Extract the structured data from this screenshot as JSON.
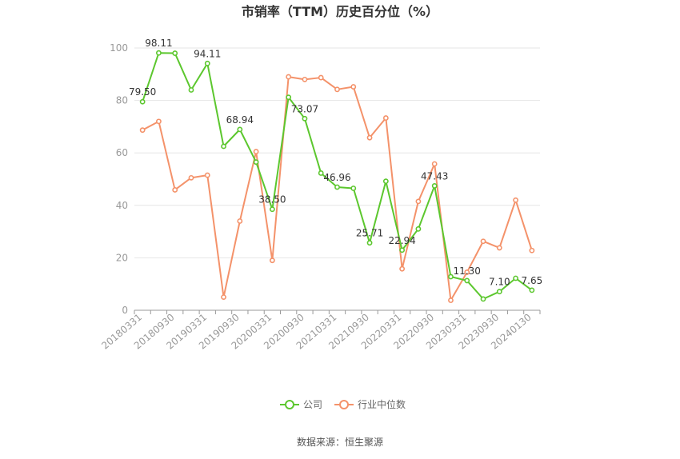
{
  "chart_data": {
    "type": "line",
    "title": "市销率（TTM）历史百分位（%）",
    "xlabel": "",
    "ylabel": "",
    "ylim": [
      0,
      100
    ],
    "yticks": [
      0,
      20,
      40,
      60,
      80,
      100
    ],
    "x": [
      "20180331",
      "20180630",
      "20180930",
      "20181231",
      "20190331",
      "20190630",
      "20190930",
      "20191231",
      "20200331",
      "20200630",
      "20200930",
      "20201231",
      "20210331",
      "20210630",
      "20210930",
      "20211231",
      "20220331",
      "20220630",
      "20220930",
      "20221231",
      "20230331",
      "20230630",
      "20230930",
      "20231231",
      "20240130"
    ],
    "xtick_labels": [
      "20180331",
      "20180930",
      "20190331",
      "20190930",
      "20200331",
      "20200930",
      "20210331",
      "20210930",
      "20220331",
      "20220930",
      "20230331",
      "20230930",
      "20240130"
    ],
    "grid": true,
    "legend_position": "bottom",
    "series": [
      {
        "name": "公司",
        "color": "#5cc72e",
        "values": [
          79.5,
          98.11,
          98.0,
          84.0,
          94.11,
          62.5,
          68.94,
          56.5,
          38.5,
          81.2,
          73.07,
          52.3,
          46.96,
          46.5,
          25.71,
          49.2,
          22.94,
          31.0,
          47.43,
          12.8,
          11.3,
          4.3,
          7.1,
          12.2,
          7.65
        ]
      },
      {
        "name": "行业中位数",
        "color": "#f4926a",
        "values": [
          68.7,
          72.0,
          45.9,
          50.5,
          51.5,
          5.0,
          34.0,
          60.5,
          19.0,
          89.0,
          88.0,
          88.7,
          84.2,
          85.2,
          65.8,
          73.3,
          15.8,
          41.5,
          55.8,
          3.8,
          14.5,
          26.3,
          23.8,
          42.0,
          22.8
        ]
      }
    ],
    "data_labels": [
      {
        "series": 0,
        "index": 0,
        "text": "79.50"
      },
      {
        "series": 0,
        "index": 1,
        "text": "98.11"
      },
      {
        "series": 0,
        "index": 4,
        "text": "94.11"
      },
      {
        "series": 0,
        "index": 6,
        "text": "68.94"
      },
      {
        "series": 0,
        "index": 8,
        "text": "38.50"
      },
      {
        "series": 0,
        "index": 10,
        "text": "73.07"
      },
      {
        "series": 0,
        "index": 12,
        "text": "46.96"
      },
      {
        "series": 0,
        "index": 14,
        "text": "25.71"
      },
      {
        "series": 0,
        "index": 16,
        "text": "22.94"
      },
      {
        "series": 0,
        "index": 18,
        "text": "47.43"
      },
      {
        "series": 0,
        "index": 20,
        "text": "11.30"
      },
      {
        "series": 0,
        "index": 22,
        "text": "7.10"
      },
      {
        "series": 0,
        "index": 24,
        "text": "7.65"
      }
    ]
  },
  "footer": {
    "source": "数据来源：恒生聚源"
  }
}
